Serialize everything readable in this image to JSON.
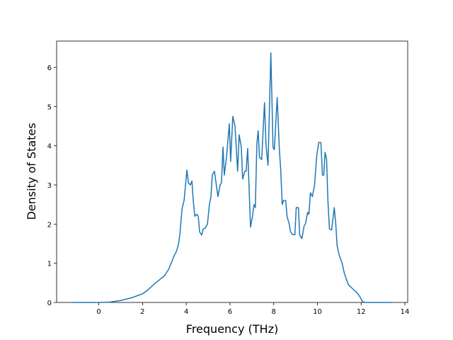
{
  "chart_data": {
    "type": "line",
    "x_label": "Frequency (THz)",
    "y_label": "Density of States",
    "x": [
      -1.2,
      0,
      0.5,
      1.0,
      1.5,
      2.0,
      2.2,
      2.6,
      3.0,
      3.2,
      3.45,
      3.55,
      3.65,
      3.71,
      3.81,
      3.9,
      4.03,
      4.1,
      4.19,
      4.26,
      4.32,
      4.39,
      4.48,
      4.55,
      4.61,
      4.71,
      4.77,
      4.87,
      4.97,
      5.06,
      5.13,
      5.19,
      5.29,
      5.35,
      5.45,
      5.55,
      5.61,
      5.68,
      5.74,
      5.84,
      5.97,
      6.03,
      6.13,
      6.23,
      6.35,
      6.42,
      6.52,
      6.58,
      6.68,
      6.74,
      6.81,
      6.87,
      6.94,
      7.03,
      7.1,
      7.16,
      7.23,
      7.29,
      7.35,
      7.45,
      7.58,
      7.65,
      7.74,
      7.87,
      7.97,
      8.03,
      8.16,
      8.26,
      8.32,
      8.39,
      8.45,
      8.55,
      8.61,
      8.71,
      8.77,
      8.87,
      8.97,
      9.03,
      9.13,
      9.19,
      9.29,
      9.39,
      9.45,
      9.55,
      9.61,
      9.68,
      9.77,
      9.87,
      9.97,
      10.06,
      10.16,
      10.23,
      10.29,
      10.35,
      10.42,
      10.48,
      10.55,
      10.65,
      10.77,
      10.84,
      10.9,
      11.0,
      11.13,
      11.23,
      11.32,
      11.42,
      11.61,
      11.81,
      11.94,
      12.06,
      12.19,
      13.4
    ],
    "series": [
      {
        "color": "#1f77b4",
        "values": [
          0,
          0,
          0.01,
          0.05,
          0.12,
          0.22,
          0.3,
          0.5,
          0.68,
          0.85,
          1.2,
          1.3,
          1.5,
          1.75,
          2.4,
          2.6,
          3.38,
          3.05,
          3.0,
          3.1,
          2.6,
          2.2,
          2.25,
          2.2,
          1.8,
          1.72,
          1.87,
          1.9,
          2.0,
          2.5,
          2.7,
          3.25,
          3.35,
          3.1,
          2.7,
          3.0,
          3.05,
          3.97,
          3.25,
          3.7,
          4.56,
          3.6,
          4.75,
          4.5,
          3.35,
          4.28,
          3.95,
          3.15,
          3.35,
          3.35,
          3.93,
          3.0,
          1.92,
          2.2,
          2.5,
          2.42,
          4.05,
          4.38,
          3.7,
          3.65,
          5.1,
          4.0,
          3.5,
          6.37,
          3.95,
          3.9,
          5.23,
          3.9,
          3.4,
          2.5,
          2.6,
          2.6,
          2.2,
          2.0,
          1.8,
          1.73,
          1.73,
          2.42,
          2.42,
          1.72,
          1.63,
          1.95,
          2.0,
          2.3,
          2.25,
          2.8,
          2.7,
          3.0,
          3.75,
          4.08,
          4.08,
          3.25,
          3.25,
          3.83,
          3.65,
          2.6,
          1.88,
          1.85,
          2.42,
          2.0,
          1.45,
          1.2,
          1.0,
          0.75,
          0.6,
          0.45,
          0.35,
          0.25,
          0.15,
          0.02,
          0,
          0
        ]
      }
    ],
    "xlim": [
      -1.93,
      14.13
    ],
    "ylim": [
      0,
      6.67
    ],
    "xticks": [
      0,
      2,
      4,
      6,
      8,
      10,
      12,
      14
    ],
    "yticks": [
      0,
      1,
      2,
      3,
      4,
      5,
      6
    ]
  }
}
